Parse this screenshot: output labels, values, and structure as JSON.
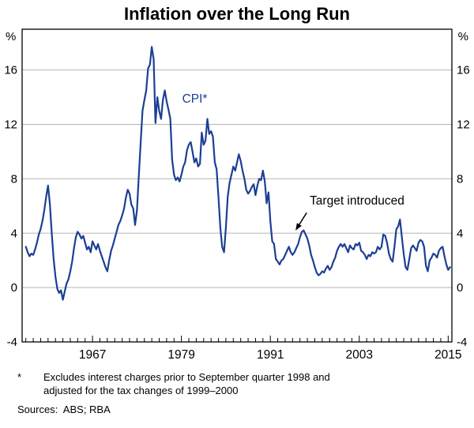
{
  "title": "Inflation over the Long Run",
  "footnote": {
    "marker": "*",
    "text": "Excludes interest charges prior to September quarter 1998 and\nadjusted for the tax changes of 1999–2000"
  },
  "sources": "Sources:  ABS; RBA",
  "chart_data": {
    "type": "line",
    "title": "Inflation over the Long Run",
    "y_unit": "%",
    "ylim": [
      -4,
      19
    ],
    "yticks": [
      -4,
      0,
      4,
      8,
      12,
      16
    ],
    "xlim": [
      1957.5,
      2015.5
    ],
    "xticks_labeled": [
      1967,
      1979,
      1991,
      2003,
      2015
    ],
    "grid": true,
    "legend": "none",
    "colors": {
      "line": "#1c3f94",
      "grid": "#b5b5b5",
      "frame": "#000000"
    },
    "x_start": 1958.0,
    "x_step": 0.25,
    "series": [
      {
        "name": "CPI*",
        "color": "#1c3f94",
        "values": [
          3.0,
          2.6,
          2.3,
          2.5,
          2.4,
          2.8,
          3.3,
          3.9,
          4.3,
          4.9,
          5.7,
          6.7,
          7.5,
          6.1,
          4.0,
          2.1,
          0.8,
          -0.1,
          -0.4,
          -0.2,
          -0.9,
          -0.3,
          0.3,
          0.6,
          1.2,
          1.9,
          2.9,
          3.7,
          4.1,
          3.9,
          3.6,
          3.8,
          3.3,
          2.8,
          3.0,
          2.6,
          3.4,
          3.1,
          2.8,
          3.2,
          2.7,
          2.3,
          1.9,
          1.5,
          1.2,
          2.0,
          2.7,
          3.1,
          3.6,
          4.1,
          4.6,
          4.9,
          5.3,
          5.8,
          6.6,
          7.2,
          6.9,
          6.1,
          5.8,
          4.6,
          5.7,
          8.2,
          10.7,
          13.0,
          13.8,
          14.5,
          16.1,
          16.4,
          17.7,
          16.8,
          12.1,
          14.0,
          13.0,
          12.4,
          13.8,
          14.5,
          13.7,
          13.1,
          12.4,
          9.4,
          8.3,
          7.9,
          8.1,
          7.8,
          8.3,
          8.9,
          9.2,
          10.1,
          10.5,
          10.7,
          10.0,
          9.2,
          9.5,
          8.9,
          9.1,
          11.4,
          10.5,
          10.8,
          12.4,
          11.3,
          11.5,
          11.1,
          9.2,
          8.7,
          6.6,
          4.4,
          3.0,
          2.6,
          4.4,
          6.7,
          7.7,
          8.3,
          8.9,
          8.6,
          9.2,
          9.8,
          9.3,
          8.6,
          8.0,
          7.2,
          6.9,
          7.1,
          7.4,
          7.6,
          6.8,
          7.5,
          8.0,
          7.9,
          8.6,
          7.8,
          6.2,
          7.0,
          4.9,
          3.4,
          3.2,
          2.1,
          1.9,
          1.7,
          2.0,
          2.1,
          2.4,
          2.7,
          3.0,
          2.6,
          2.4,
          2.6,
          2.9,
          3.2,
          3.7,
          4.1,
          4.2,
          3.9,
          3.6,
          3.1,
          2.4,
          2.0,
          1.5,
          1.1,
          0.9,
          1.0,
          1.2,
          1.1,
          1.4,
          1.6,
          1.3,
          1.5,
          1.9,
          2.2,
          2.7,
          3.0,
          3.2,
          3.0,
          3.2,
          2.9,
          2.6,
          3.1,
          2.9,
          2.8,
          3.2,
          3.1,
          3.3,
          2.7,
          2.6,
          2.4,
          2.1,
          2.4,
          2.3,
          2.6,
          2.5,
          2.6,
          3.0,
          2.8,
          3.0,
          3.9,
          3.8,
          3.3,
          2.5,
          2.1,
          1.9,
          3.0,
          4.3,
          4.5,
          5.0,
          3.7,
          2.5,
          1.5,
          1.3,
          2.1,
          2.9,
          3.1,
          2.9,
          2.7,
          3.3,
          3.5,
          3.4,
          3.0,
          1.6,
          1.2,
          2.0,
          2.2,
          2.5,
          2.4,
          2.2,
          2.7,
          2.9,
          3.0,
          2.3,
          1.7,
          1.3,
          1.5
        ]
      }
    ],
    "annotations": [
      {
        "text": "CPI*",
        "x": 1980.8,
        "y": 13.6,
        "color": "#1c3f94"
      },
      {
        "text": "Target introduced",
        "x": 2002.7,
        "y": 6.1,
        "color": "#000000",
        "arrow": {
          "from": [
            1995.9,
            5.5
          ],
          "to": [
            1994.4,
            4.2
          ]
        }
      }
    ]
  }
}
